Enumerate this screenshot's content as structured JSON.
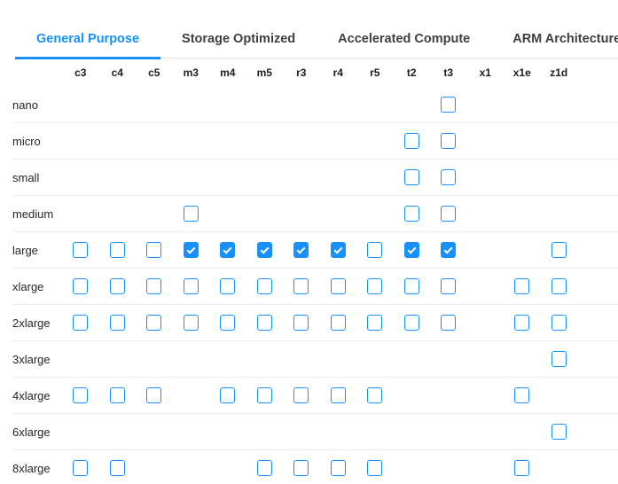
{
  "tabs": {
    "items": [
      {
        "label": "General Purpose",
        "active": true
      },
      {
        "label": "Storage Optimized",
        "active": false
      },
      {
        "label": "Accelerated Compute",
        "active": false
      },
      {
        "label": "ARM Architecture",
        "active": false
      }
    ]
  },
  "matrix": {
    "columns": [
      "c3",
      "c4",
      "c5",
      "m3",
      "m4",
      "m5",
      "r3",
      "r4",
      "r5",
      "t2",
      "t3",
      "x1",
      "x1e",
      "z1d"
    ],
    "rows": [
      {
        "label": "nano",
        "cells": [
          null,
          null,
          null,
          null,
          null,
          null,
          null,
          null,
          null,
          null,
          false,
          null,
          null,
          null
        ]
      },
      {
        "label": "micro",
        "cells": [
          null,
          null,
          null,
          null,
          null,
          null,
          null,
          null,
          null,
          false,
          false,
          null,
          null,
          null
        ]
      },
      {
        "label": "small",
        "cells": [
          null,
          null,
          null,
          null,
          null,
          null,
          null,
          null,
          null,
          false,
          false,
          null,
          null,
          null
        ]
      },
      {
        "label": "medium",
        "cells": [
          null,
          null,
          null,
          false,
          null,
          null,
          null,
          null,
          null,
          false,
          false,
          null,
          null,
          null
        ]
      },
      {
        "label": "large",
        "cells": [
          false,
          false,
          false,
          true,
          true,
          true,
          true,
          true,
          false,
          true,
          true,
          null,
          null,
          false
        ]
      },
      {
        "label": "xlarge",
        "cells": [
          false,
          false,
          false,
          false,
          false,
          false,
          false,
          false,
          false,
          false,
          false,
          null,
          false,
          false
        ]
      },
      {
        "label": "2xlarge",
        "cells": [
          false,
          false,
          false,
          false,
          false,
          false,
          false,
          false,
          false,
          false,
          false,
          null,
          false,
          false
        ]
      },
      {
        "label": "3xlarge",
        "cells": [
          null,
          null,
          null,
          null,
          null,
          null,
          null,
          null,
          null,
          null,
          null,
          null,
          null,
          false
        ]
      },
      {
        "label": "4xlarge",
        "cells": [
          false,
          false,
          false,
          null,
          false,
          false,
          false,
          false,
          false,
          null,
          null,
          null,
          false,
          null
        ]
      },
      {
        "label": "6xlarge",
        "cells": [
          null,
          null,
          null,
          null,
          null,
          null,
          null,
          null,
          null,
          null,
          null,
          null,
          null,
          false
        ]
      },
      {
        "label": "8xlarge",
        "cells": [
          false,
          false,
          null,
          null,
          null,
          false,
          false,
          false,
          false,
          null,
          null,
          null,
          false,
          null
        ]
      }
    ]
  },
  "colors": {
    "accent": "#1890ff",
    "tab_inactive_text": "#3f3f3f",
    "row_separator": "#ededed",
    "tabbar_separator": "#e4e4e4",
    "check_mark": "#ffffff"
  }
}
